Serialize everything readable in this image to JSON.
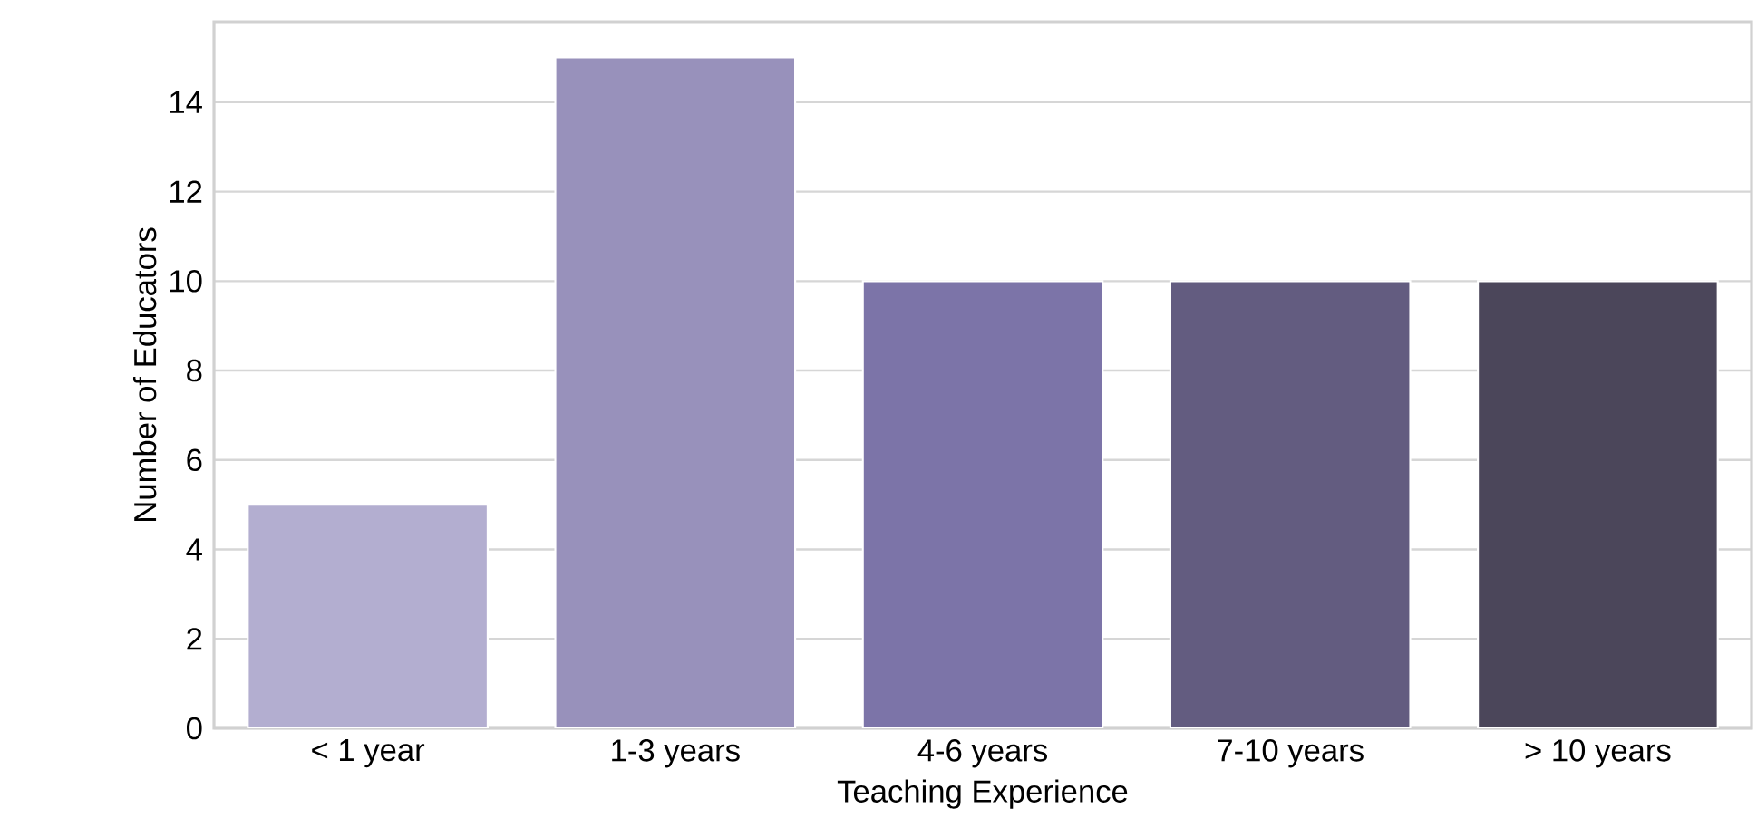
{
  "chart_data": {
    "type": "bar",
    "xlabel": "Teaching Experience",
    "ylabel": "Number of Educators",
    "categories": [
      "< 1 year",
      "1-3 years",
      "4-6 years",
      "7-10 years",
      "> 10 years"
    ],
    "values": [
      5,
      15,
      10,
      10,
      10
    ],
    "colors": [
      "#b3aed0",
      "#9891bb",
      "#7c74a8",
      "#635c80",
      "#4b465a"
    ],
    "ylim": [
      0,
      15.8
    ],
    "yticks": [
      0,
      2,
      4,
      6,
      8,
      10,
      12,
      14
    ],
    "grid": "y"
  }
}
